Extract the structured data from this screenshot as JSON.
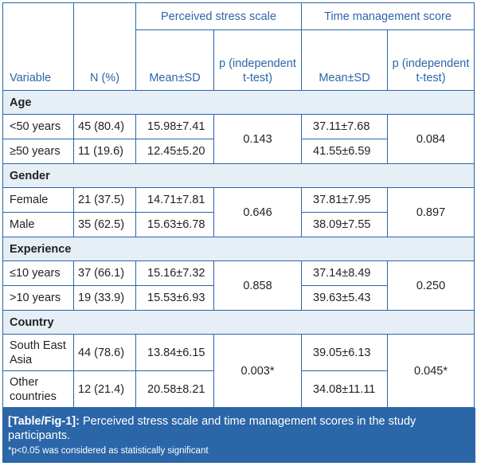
{
  "header": {
    "group1": "Perceived stress scale",
    "group2": "Time management score",
    "variable": "Variable",
    "n": "N (%)",
    "mean_sd": "Mean±SD",
    "p_label": "p (independent t-test)"
  },
  "groups": [
    {
      "name": "Age",
      "rows": [
        {
          "label": "<50 years",
          "n": "45 (80.4)",
          "pss": "15.98±7.41",
          "tms": "37.11±7.68"
        },
        {
          "label": "≥50 years",
          "n": "11 (19.6)",
          "pss": "12.45±5.20",
          "tms": "41.55±6.59"
        }
      ],
      "p_pss": "0.143",
      "p_tms": "0.084"
    },
    {
      "name": "Gender",
      "rows": [
        {
          "label": "Female",
          "n": "21 (37.5)",
          "pss": "14.71±7.81",
          "tms": "37.81±7.95"
        },
        {
          "label": "Male",
          "n": "35 (62.5)",
          "pss": "15.63±6.78",
          "tms": "38.09±7.55"
        }
      ],
      "p_pss": "0.646",
      "p_tms": "0.897"
    },
    {
      "name": "Experience",
      "rows": [
        {
          "label": "≤10 years",
          "n": "37 (66.1)",
          "pss": "15.16±7.32",
          "tms": "37.14±8.49"
        },
        {
          "label": ">10 years",
          "n": "19 (33.9)",
          "pss": "15.53±6.93",
          "tms": "39.63±5.43"
        }
      ],
      "p_pss": "0.858",
      "p_tms": "0.250"
    },
    {
      "name": "Country",
      "rows": [
        {
          "label": "South East Asia",
          "n": "44 (78.6)",
          "pss": "13.84±6.15",
          "tms": "39.05±6.13"
        },
        {
          "label": "Other countries",
          "n": "12 (21.4)",
          "pss": "20.58±8.21",
          "tms": "34.08±11.11"
        }
      ],
      "p_pss": "0.003*",
      "p_tms": "0.045*"
    }
  ],
  "caption": {
    "tag": "[Table/Fig-1]:",
    "text": "Perceived stress scale and time management scores in the study participants.",
    "note": "*p<0.05 was considered as statistically significant"
  }
}
